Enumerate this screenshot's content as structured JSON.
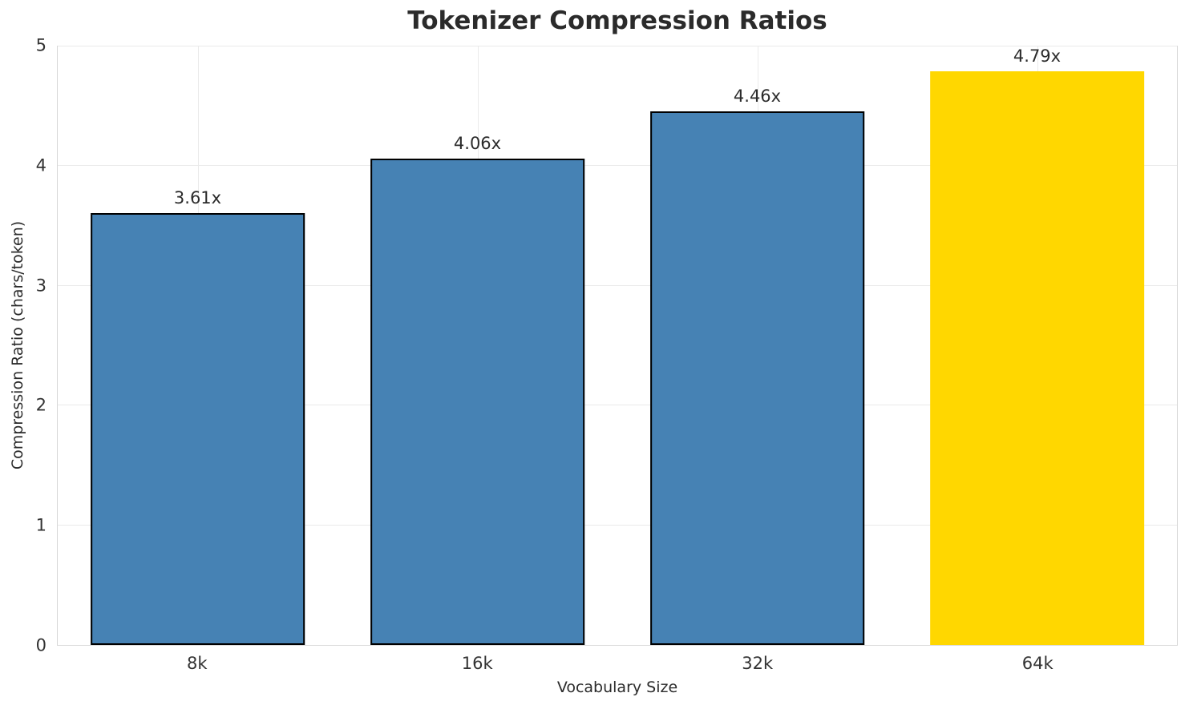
{
  "title": "Tokenizer Compression Ratios",
  "chart_data": {
    "type": "bar",
    "title": "Tokenizer Compression Ratios",
    "xlabel": "Vocabulary Size",
    "ylabel": "Compression Ratio (chars/token)",
    "categories": [
      "8k",
      "16k",
      "32k",
      "64k"
    ],
    "values": [
      3.61,
      4.06,
      4.46,
      4.79
    ],
    "bar_labels": [
      "3.61x",
      "4.06x",
      "4.46x",
      "4.79x"
    ],
    "bar_colors": [
      "#4682B4",
      "#4682B4",
      "#4682B4",
      "#FFD700"
    ],
    "bar_edge_colors": [
      "#000000",
      "#000000",
      "#000000",
      "none"
    ],
    "highlight_index": 3,
    "ylim": [
      0,
      5
    ],
    "yticks": [
      0,
      1,
      2,
      3,
      4,
      5
    ],
    "grid": true,
    "gridline_color": "#eaeaea",
    "bar_width_fraction": 0.767,
    "legend": "none"
  }
}
